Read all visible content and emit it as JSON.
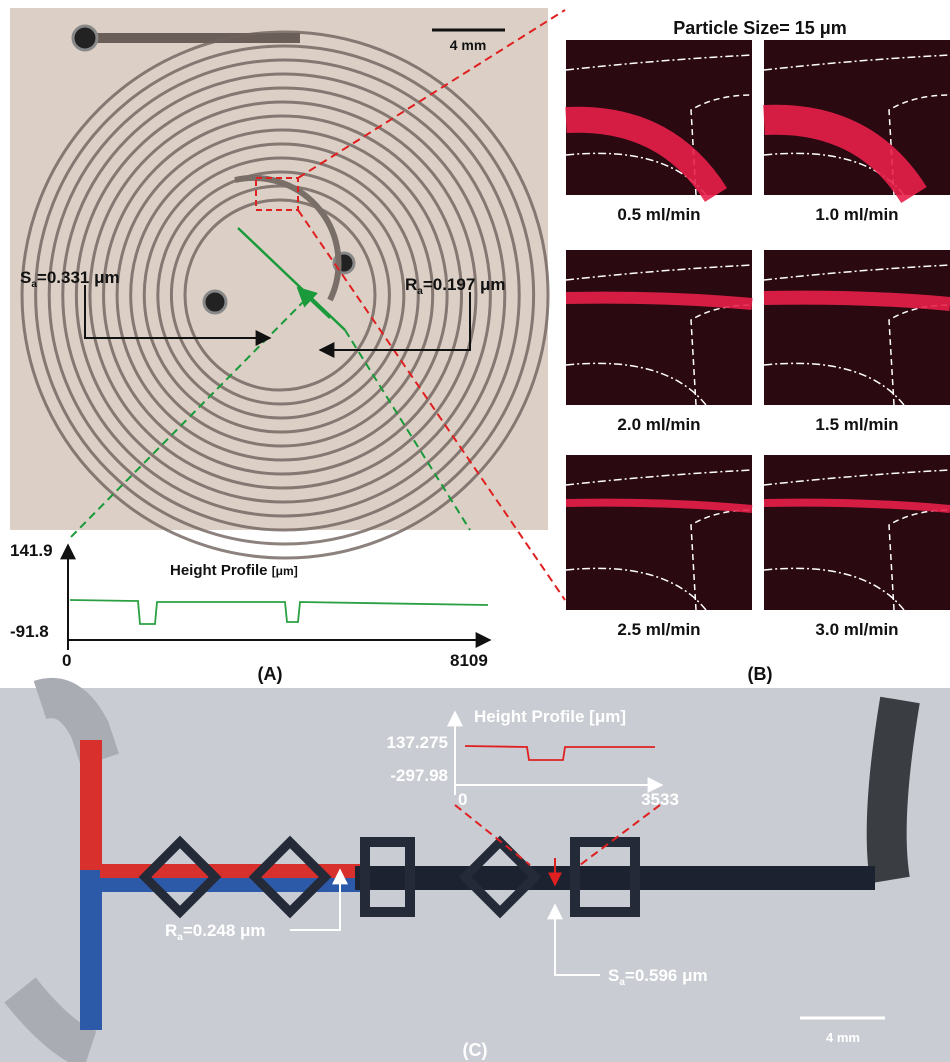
{
  "panel_a": {
    "label": "(A)",
    "scale_bar": "4 mm",
    "sa": {
      "symbol": "S",
      "subscript": "a",
      "value": "=0.331 μm"
    },
    "ra": {
      "symbol": "R",
      "subscript": "a",
      "value": "=0.197 μm"
    },
    "height_profile": {
      "title": "Height Profile",
      "unit": "[μm]",
      "y_top": "141.9",
      "y_bottom": "-91.8",
      "x_start": "0",
      "x_end": "8109"
    }
  },
  "panel_b": {
    "label": "(B)",
    "title": "Particle Size= 15 μm",
    "flow_rates": [
      "0.5 ml/min",
      "1.0 ml/min",
      "2.0 ml/min",
      "1.5 ml/min",
      "2.5 ml/min",
      "3.0 ml/min"
    ]
  },
  "panel_c": {
    "label": "(C)",
    "scale_bar": "4 mm",
    "height_profile": {
      "title": "Height Profile [μm]",
      "y_top": "137.275",
      "y_bottom": "-297.98",
      "x_start": "0",
      "x_end": "3533"
    },
    "ra": {
      "symbol": "R",
      "subscript": "a",
      "value": "=0.248 μm"
    },
    "sa": {
      "symbol": "S",
      "subscript": "a",
      "value": "=0.596 μm"
    }
  }
}
